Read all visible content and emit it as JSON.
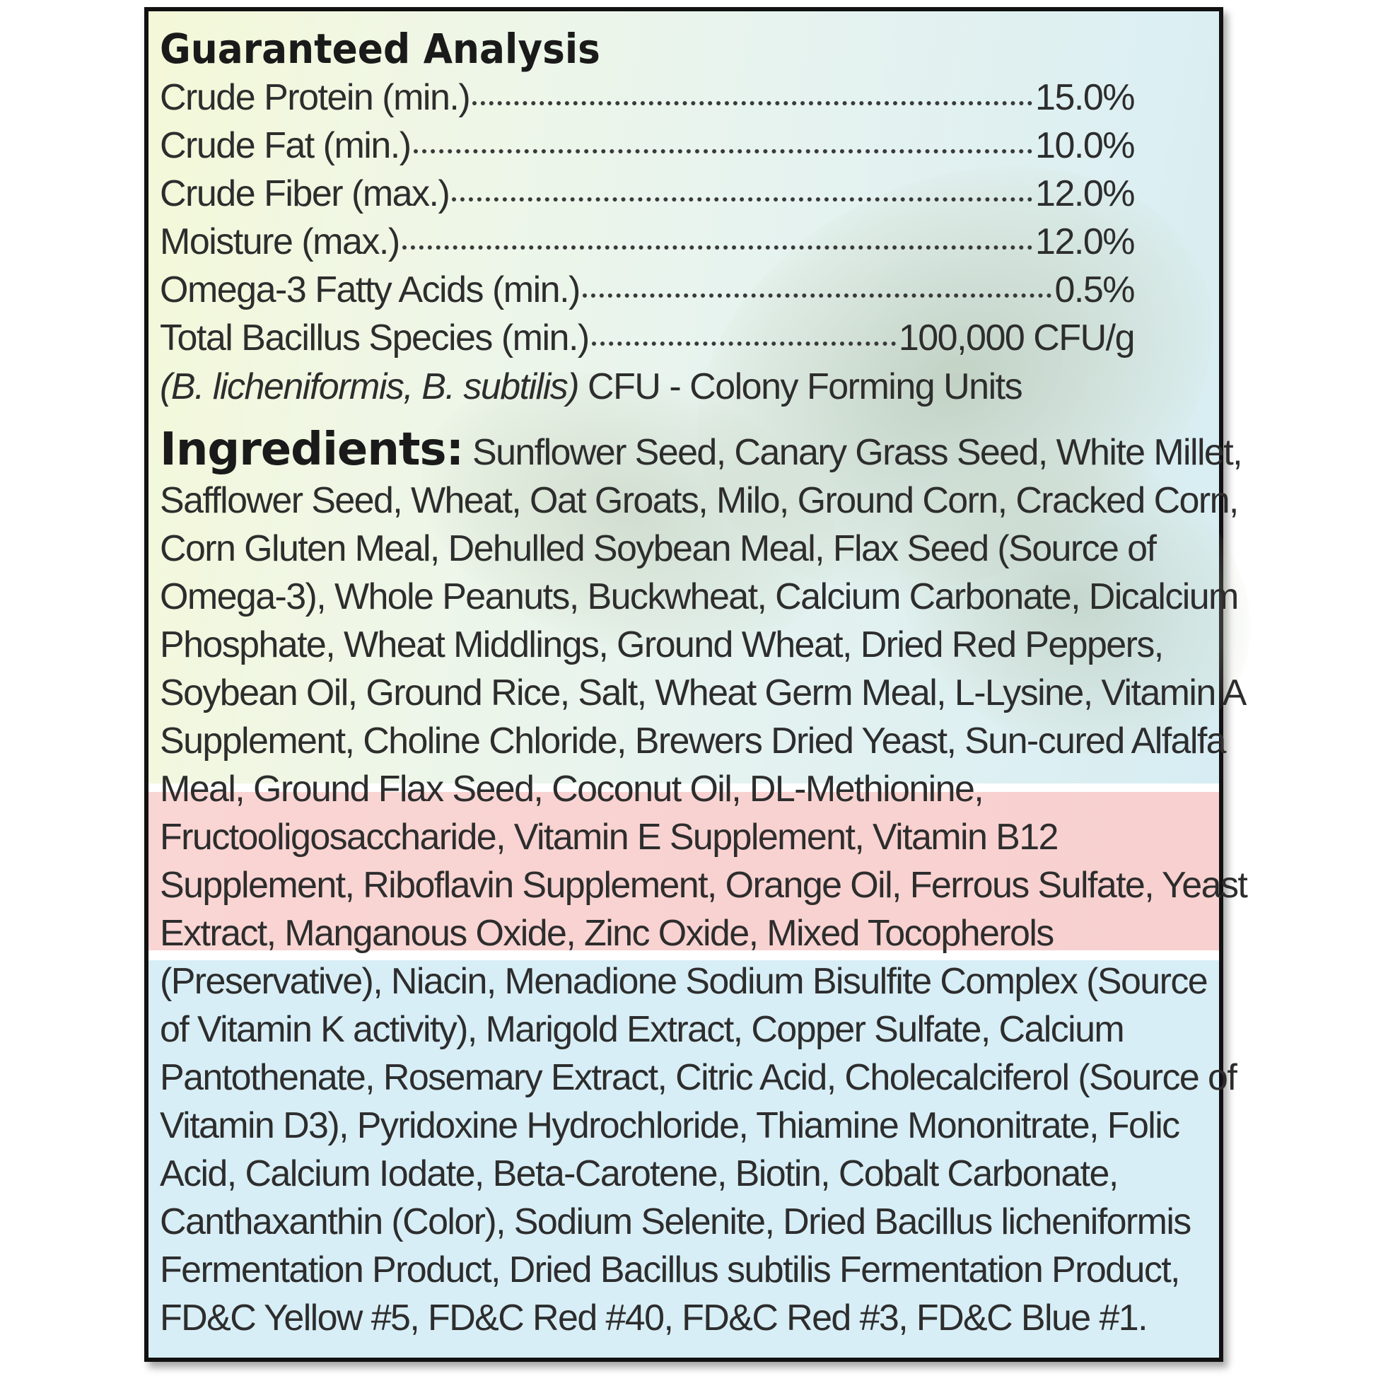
{
  "guaranteed_analysis": {
    "heading": "Guaranteed Analysis",
    "rows": [
      {
        "label": "Crude Protein (min.)",
        "value": "15.0%"
      },
      {
        "label": "Crude Fat (min.)",
        "value": "10.0%"
      },
      {
        "label": "Crude Fiber (max.)",
        "value": "12.0%"
      },
      {
        "label": "Moisture (max.)",
        "value": "12.0%"
      },
      {
        "label": "Omega-3 Fatty Acids (min.)",
        "value": "0.5%"
      },
      {
        "label": "Total Bacillus Species (min.)",
        "value": "100,000 CFU/g"
      }
    ],
    "note_italic": "(B. licheniformis, B. subtilis)",
    "note_text": " CFU - Colony Forming Units"
  },
  "ingredients": {
    "heading": "Ingredients:",
    "lines": [
      " Sunflower Seed, Canary Grass Seed, White Millet,",
      "Safflower Seed, Wheat, Oat Groats, Milo, Ground Corn, Cracked Corn,",
      "Corn Gluten Meal, Dehulled Soybean Meal, Flax Seed (Source of",
      "Omega-3), Whole Peanuts, Buckwheat, Calcium Carbonate, Dicalcium",
      "Phosphate, Wheat Middlings, Ground Wheat, Dried Red Peppers,",
      "Soybean Oil, Ground Rice, Salt, Wheat Germ Meal, L-Lysine, Vitamin A",
      "Supplement, Choline Chloride, Brewers Dried Yeast, Sun-cured Alfalfa",
      "Meal, Ground Flax Seed, Coconut Oil, DL-Methionine,",
      "Fructooligosaccharide, Vitamin E Supplement, Vitamin B12",
      "Supplement, Riboflavin Supplement, Orange Oil, Ferrous Sulfate, Yeast",
      "Extract, Manganous Oxide, Zinc Oxide, Mixed Tocopherols",
      "(Preservative), Niacin, Menadione Sodium Bisulfite Complex (Source",
      "of Vitamin K activity), Marigold Extract, Copper Sulfate, Calcium",
      "Pantothenate, Rosemary Extract, Citric Acid, Cholecalciferol (Source of",
      "Vitamin D3), Pyridoxine Hydrochloride, Thiamine Mononitrate, Folic",
      "Acid, Calcium Iodate, Beta-Carotene, Biotin, Cobalt Carbonate,",
      "Canthaxanthin (Color), Sodium Selenite, Dried Bacillus licheniformis",
      "Fermentation Product, Dried Bacillus subtilis Fermentation Product,",
      "FD&C Yellow #5, FD&C Red #40, FD&C Red #3, FD&C Blue #1."
    ]
  },
  "colors": {
    "border": "#111111",
    "text": "#2d2d2d",
    "band_red": "#f8d3d1",
    "band_blue": "#d8eef6",
    "band_top": "#eef6e4"
  }
}
